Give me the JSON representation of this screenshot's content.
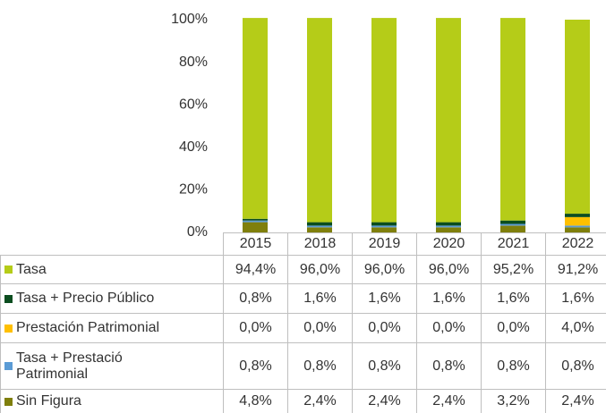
{
  "chart_data": {
    "type": "stacked_bar",
    "categories": [
      "2015",
      "2018",
      "2019",
      "2020",
      "2021",
      "2022"
    ],
    "series": [
      {
        "name": "Tasa",
        "color": "#b5cc18",
        "values": [
          94.4,
          96.0,
          96.0,
          96.0,
          95.2,
          91.2
        ],
        "value_labels": [
          "94,4%",
          "96,0%",
          "96,0%",
          "96,0%",
          "95,2%",
          "91,2%"
        ]
      },
      {
        "name": "Tasa + Precio Público",
        "color": "#0b4d1f",
        "values": [
          0.8,
          1.6,
          1.6,
          1.6,
          1.6,
          1.6
        ],
        "value_labels": [
          "0,8%",
          "1,6%",
          "1,6%",
          "1,6%",
          "1,6%",
          "1,6%"
        ]
      },
      {
        "name": "Prestación Patrimonial",
        "color": "#ffc000",
        "values": [
          0.0,
          0.0,
          0.0,
          0.0,
          0.0,
          4.0
        ],
        "value_labels": [
          "0,0%",
          "0,0%",
          "0,0%",
          "0,0%",
          "0,0%",
          "4,0%"
        ]
      },
      {
        "name": "Tasa + Prestació Patrimonial",
        "color": "#5b9bd5",
        "values": [
          0.8,
          0.8,
          0.8,
          0.8,
          0.8,
          0.8
        ],
        "value_labels": [
          "0,8%",
          "0,8%",
          "0,8%",
          "0,8%",
          "0,8%",
          "0,8%"
        ]
      },
      {
        "name": "Sin Figura",
        "color": "#7f7f0c",
        "values": [
          4.8,
          2.4,
          2.4,
          2.4,
          3.2,
          2.4
        ],
        "value_labels": [
          "4,8%",
          "2,4%",
          "2,4%",
          "2,4%",
          "3,2%",
          "2,4%"
        ]
      }
    ],
    "ylim": [
      0,
      100
    ],
    "yticks": [
      {
        "value": 0,
        "label": "0%"
      },
      {
        "value": 20,
        "label": "20%"
      },
      {
        "value": 40,
        "label": "40%"
      },
      {
        "value": 60,
        "label": "60%"
      },
      {
        "value": 80,
        "label": "80%"
      },
      {
        "value": 100,
        "label": "100%"
      }
    ]
  }
}
